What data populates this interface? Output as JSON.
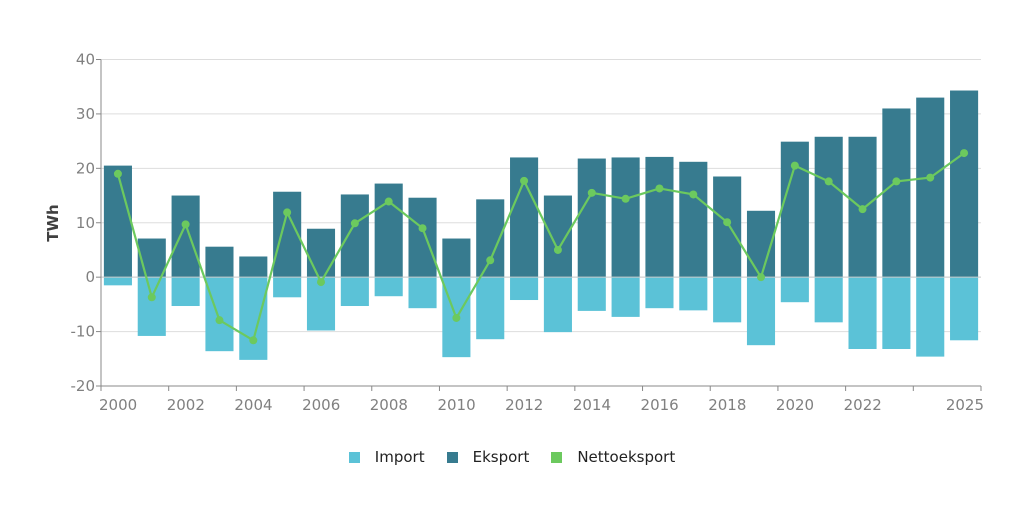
{
  "chart_data": {
    "type": "bar",
    "title": "",
    "xlabel": "",
    "ylabel": "TWh",
    "ylim": [
      -20,
      40
    ],
    "yticks": [
      40,
      30,
      20,
      10,
      0,
      -10,
      -20
    ],
    "grid": true,
    "legend_position": "bottom-center",
    "categories": [
      "2000",
      "2001",
      "2002",
      "2003",
      "2004",
      "2005",
      "2006",
      "2007",
      "2008",
      "2009",
      "2010",
      "2011",
      "2012",
      "2013",
      "2014",
      "2015",
      "2016",
      "2017",
      "2018",
      "2019",
      "2020",
      "2021",
      "2022",
      "2023",
      "2024",
      "2025"
    ],
    "xtick_labels": [
      "2000",
      "2002",
      "2004",
      "2006",
      "2008",
      "2010",
      "2012",
      "2014",
      "2016",
      "2018",
      "2020",
      "2022",
      "",
      "2025"
    ],
    "series": [
      {
        "name": "Import",
        "type": "bar",
        "color": "#5bc2d7",
        "values": [
          -1.5,
          -10.8,
          -5.3,
          -13.6,
          -15.2,
          -3.7,
          -9.8,
          -5.3,
          -3.5,
          -5.7,
          -14.7,
          -11.4,
          -4.2,
          -10.1,
          -6.2,
          -7.3,
          -5.7,
          -6.1,
          -8.3,
          -12.5,
          -4.6,
          -8.3,
          -13.2,
          -13.2,
          -14.6,
          -11.6
        ]
      },
      {
        "name": "Eksport",
        "type": "bar",
        "color": "#377b8f",
        "values": [
          20.5,
          7.1,
          15.0,
          5.6,
          3.8,
          15.7,
          8.9,
          15.2,
          17.2,
          14.6,
          7.1,
          14.3,
          22.0,
          15.0,
          21.8,
          22.0,
          22.1,
          21.2,
          18.5,
          12.2,
          24.9,
          25.8,
          25.8,
          31.0,
          33.0,
          34.3
        ]
      },
      {
        "name": "Nettoeksport",
        "type": "line",
        "color": "#6cc95e",
        "values": [
          19.0,
          -3.7,
          9.7,
          -7.9,
          -11.6,
          11.9,
          -0.9,
          9.9,
          13.9,
          9.0,
          -7.5,
          3.1,
          17.7,
          5.0,
          15.5,
          14.4,
          16.3,
          15.2,
          10.1,
          0.0,
          20.5,
          17.6,
          12.5,
          17.6,
          18.3,
          22.8
        ]
      }
    ]
  }
}
